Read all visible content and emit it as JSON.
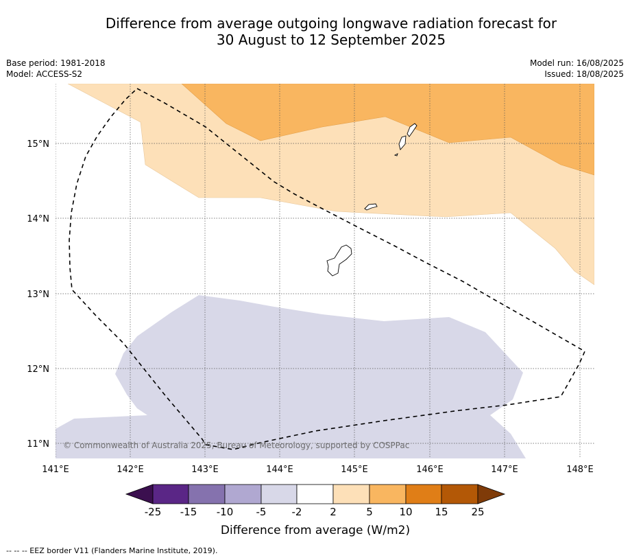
{
  "title_line1": "Difference from average outgoing longwave radiation forecast for",
  "title_line2": "30 August to 12 September 2025",
  "base_period": "Base period: 1981-2018",
  "model": "Model: ACCESS-S2",
  "model_run": "Model run: 16/08/2025",
  "issued": "Issued: 18/08/2025",
  "copyright": "© Commonwealth of Australia 2025, Bureau of Meteorology, supported by COSPPac",
  "lon_labels": [
    "141°E",
    "142°E",
    "143°E",
    "144°E",
    "145°E",
    "146°E",
    "147°E",
    "148°E"
  ],
  "lat_labels": [
    "15°N",
    "14°N",
    "13°N",
    "12°N",
    "11°N"
  ],
  "colorbar": {
    "label": "Difference from average (W/m2)",
    "ticks": [
      "-25",
      "-15",
      "-10",
      "-5",
      "-2",
      "2",
      "5",
      "10",
      "15",
      "25"
    ],
    "colors": [
      "#5a2686",
      "#8572ae",
      "#b0a8d1",
      "#d8d8e8",
      "#ffffff",
      "#fde0b8",
      "#f9b660",
      "#e07e17",
      "#b35806"
    ],
    "under_color": "#3b0f4f",
    "over_color": "#7f3b08"
  },
  "legend_note": "--  --  -- EEZ border V11 (Flanders Marine Institute, 2019)."
}
